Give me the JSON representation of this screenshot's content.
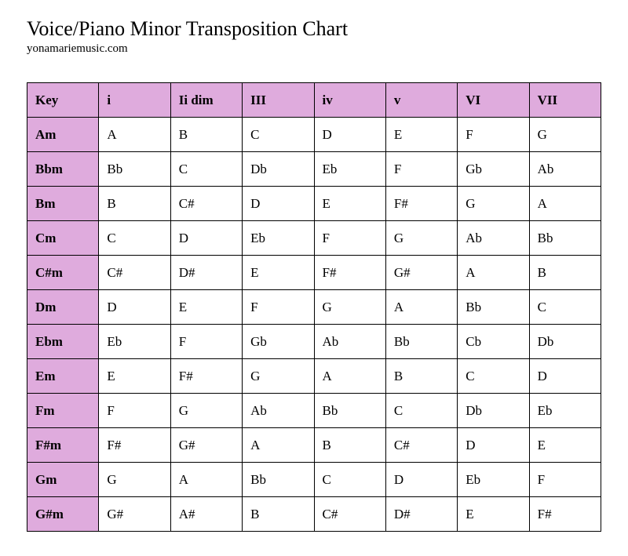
{
  "title": "Voice/Piano Minor Transposition Chart",
  "subtitle": "yonamariemusic.com",
  "table": {
    "type": "table",
    "header_bg_color": "#dfabdd",
    "row_header_bg_color": "#dfabdd",
    "cell_bg_color": "#ffffff",
    "border_color": "#000000",
    "columns": [
      "Key",
      "i",
      "Ii dim",
      "III",
      "iv",
      "v",
      "VI",
      "VII"
    ],
    "rows": [
      {
        "key": "Am",
        "cells": [
          "A",
          "B",
          "C",
          "D",
          "E",
          "F",
          "G"
        ]
      },
      {
        "key": "Bbm",
        "cells": [
          "Bb",
          "C",
          "Db",
          "Eb",
          "F",
          "Gb",
          "Ab"
        ]
      },
      {
        "key": "Bm",
        "cells": [
          "B",
          "C#",
          "D",
          "E",
          "F#",
          "G",
          "A"
        ]
      },
      {
        "key": "Cm",
        "cells": [
          "C",
          "D",
          "Eb",
          "F",
          "G",
          "Ab",
          "Bb"
        ]
      },
      {
        "key": "C#m",
        "cells": [
          "C#",
          "D#",
          "E",
          "F#",
          "G#",
          "A",
          "B"
        ]
      },
      {
        "key": "Dm",
        "cells": [
          "D",
          "E",
          "F",
          "G",
          "A",
          "Bb",
          "C"
        ]
      },
      {
        "key": "Ebm",
        "cells": [
          "Eb",
          "F",
          "Gb",
          "Ab",
          "Bb",
          "Cb",
          "Db"
        ]
      },
      {
        "key": "Em",
        "cells": [
          "E",
          "F#",
          "G",
          "A",
          "B",
          "C",
          "D"
        ]
      },
      {
        "key": "Fm",
        "cells": [
          "F",
          "G",
          "Ab",
          "Bb",
          "C",
          "Db",
          "Eb"
        ]
      },
      {
        "key": "F#m",
        "cells": [
          "F#",
          "G#",
          "A",
          "B",
          "C#",
          "D",
          "E"
        ]
      },
      {
        "key": "Gm",
        "cells": [
          "G",
          "A",
          "Bb",
          "C",
          "D",
          "Eb",
          "F"
        ]
      },
      {
        "key": "G#m",
        "cells": [
          "G#",
          "A#",
          "B",
          "C#",
          "D#",
          "E",
          "F#"
        ]
      }
    ]
  }
}
